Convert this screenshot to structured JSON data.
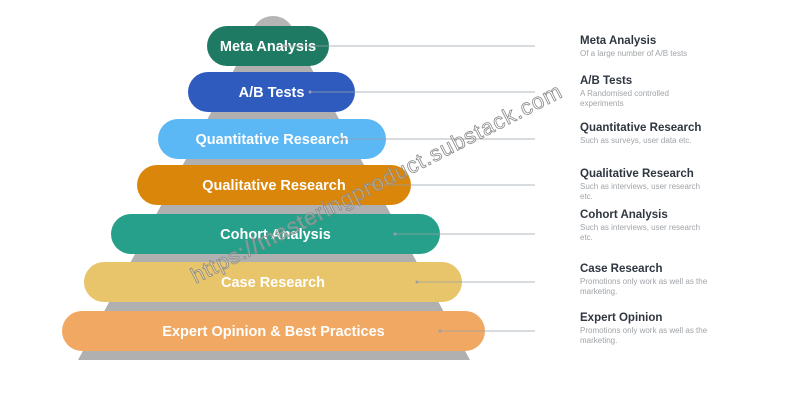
{
  "levels": [
    {
      "label": "Meta Analysis",
      "title": "Meta Analysis",
      "description": "Of a large number of A/B tests",
      "color": "#1f7a63"
    },
    {
      "label": "A/B Tests",
      "title": "A/B Tests",
      "description": "A Randomised controlled experiments",
      "color": "#2f5bbf"
    },
    {
      "label": "Quantitative Research",
      "title": "Quantitative Research",
      "description": "Such as surveys, user data etc.",
      "color": "#5bb8f5"
    },
    {
      "label": "Qualitative Research",
      "title": "Qualitative Research",
      "description": "Such as interviews, user research etc.",
      "color": "#d9860a"
    },
    {
      "label": "Cohort Analysis",
      "title": "Cohort Analysis",
      "description": "Such as interviews, user research etc.",
      "color": "#26a08a"
    },
    {
      "label": "Case Research",
      "title": "Case Research",
      "description": "Promotions only work as well as the marketing.",
      "color": "#e8c56a"
    },
    {
      "label": "Expert Opinion & Best Practices",
      "title": "Expert Opinion",
      "description": "Promotions only work as well as the marketing.",
      "color": "#f0a862"
    }
  ],
  "watermark": "https://masteringproduct.substack.com"
}
